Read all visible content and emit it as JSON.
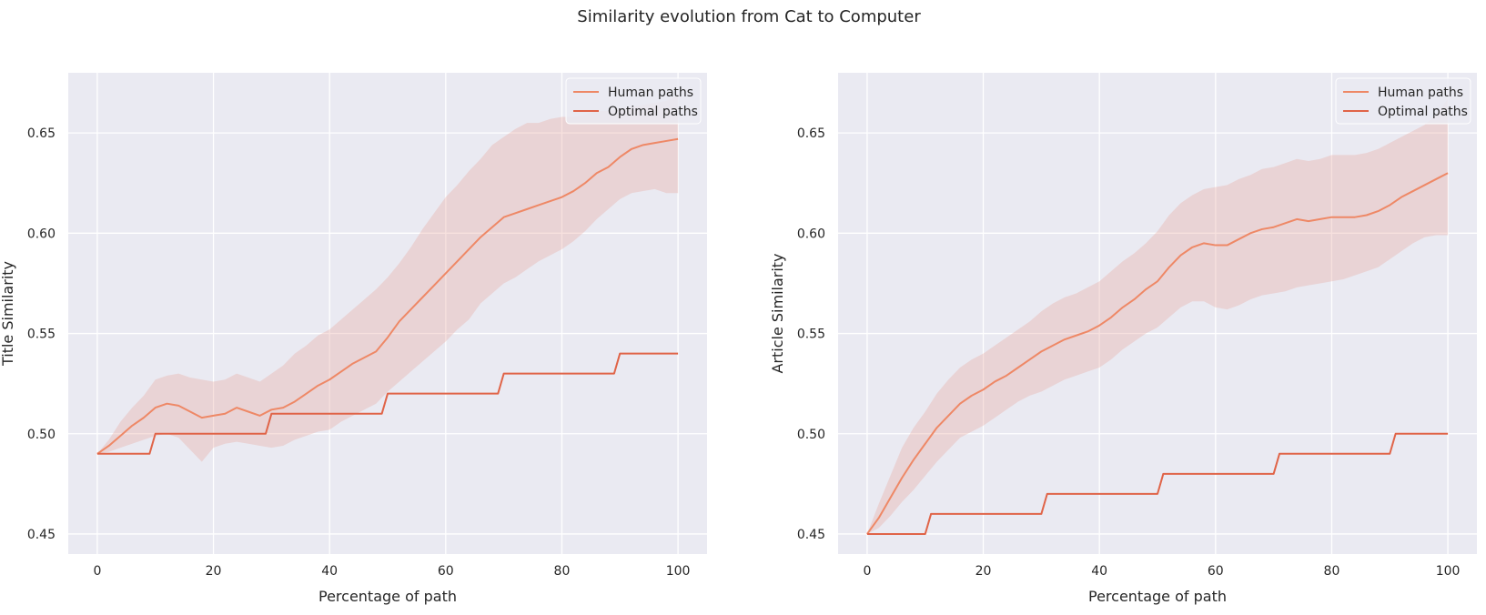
{
  "figure": {
    "title": "Similarity evolution from Cat to Computer"
  },
  "colors": {
    "background": "#eaeaf2",
    "grid": "#ffffff",
    "human": "#ee8866",
    "optimal": "#e06448",
    "band": "#e8a9a0"
  },
  "chart_data": [
    {
      "type": "line",
      "title": "",
      "xlabel": "Percentage of path",
      "ylabel": "Title Similarity",
      "xlim": [
        -5,
        105
      ],
      "ylim": [
        0.44,
        0.68
      ],
      "xticks": [
        0,
        20,
        40,
        60,
        80,
        100
      ],
      "xtick_labels": [
        "0",
        "20",
        "40",
        "60",
        "80",
        "100"
      ],
      "yticks": [
        0.45,
        0.5,
        0.55,
        0.6,
        0.65
      ],
      "ytick_labels": [
        "0.45",
        "0.50",
        "0.55",
        "0.60",
        "0.65"
      ],
      "grid": true,
      "legend_position": "upper-right",
      "series": [
        {
          "name": "Human paths",
          "color_key": "human",
          "x": [
            0,
            2,
            4,
            6,
            8,
            10,
            12,
            14,
            16,
            18,
            20,
            22,
            24,
            26,
            28,
            30,
            32,
            34,
            36,
            38,
            40,
            42,
            44,
            46,
            48,
            50,
            52,
            54,
            56,
            58,
            60,
            62,
            64,
            66,
            68,
            70,
            72,
            74,
            76,
            78,
            80,
            82,
            84,
            86,
            88,
            90,
            92,
            94,
            96,
            98,
            100
          ],
          "y": [
            0.49,
            0.494,
            0.499,
            0.504,
            0.508,
            0.513,
            0.515,
            0.514,
            0.511,
            0.508,
            0.509,
            0.51,
            0.513,
            0.511,
            0.509,
            0.512,
            0.513,
            0.516,
            0.52,
            0.524,
            0.527,
            0.531,
            0.535,
            0.538,
            0.541,
            0.548,
            0.556,
            0.562,
            0.568,
            0.574,
            0.58,
            0.586,
            0.592,
            0.598,
            0.603,
            0.608,
            0.61,
            0.612,
            0.614,
            0.616,
            0.618,
            0.621,
            0.625,
            0.63,
            0.633,
            0.638,
            0.642,
            0.644,
            0.645,
            0.646,
            0.647
          ],
          "ci_lower": [
            0.49,
            0.491,
            0.493,
            0.495,
            0.497,
            0.499,
            0.5,
            0.498,
            0.492,
            0.486,
            0.493,
            0.495,
            0.496,
            0.495,
            0.494,
            0.493,
            0.494,
            0.497,
            0.499,
            0.501,
            0.502,
            0.506,
            0.509,
            0.512,
            0.515,
            0.521,
            0.526,
            0.531,
            0.536,
            0.541,
            0.546,
            0.552,
            0.557,
            0.565,
            0.57,
            0.575,
            0.578,
            0.582,
            0.586,
            0.589,
            0.592,
            0.596,
            0.601,
            0.607,
            0.612,
            0.617,
            0.62,
            0.621,
            0.622,
            0.62,
            0.62
          ],
          "ci_upper": [
            0.49,
            0.497,
            0.506,
            0.513,
            0.519,
            0.527,
            0.529,
            0.53,
            0.528,
            0.527,
            0.526,
            0.527,
            0.53,
            0.528,
            0.526,
            0.53,
            0.534,
            0.54,
            0.544,
            0.549,
            0.552,
            0.557,
            0.562,
            0.567,
            0.572,
            0.578,
            0.585,
            0.593,
            0.602,
            0.61,
            0.618,
            0.624,
            0.631,
            0.637,
            0.644,
            0.648,
            0.652,
            0.655,
            0.655,
            0.657,
            0.658,
            0.658,
            0.659,
            0.661,
            0.661,
            0.662,
            0.663,
            0.664,
            0.665,
            0.666,
            0.669
          ]
        },
        {
          "name": "Optimal paths",
          "color_key": "optimal",
          "x": [
            0,
            9,
            10,
            29,
            30,
            49,
            50,
            69,
            70,
            89,
            90,
            100
          ],
          "y": [
            0.49,
            0.49,
            0.5,
            0.5,
            0.51,
            0.51,
            0.52,
            0.52,
            0.53,
            0.53,
            0.54,
            0.54
          ]
        }
      ]
    },
    {
      "type": "line",
      "title": "",
      "xlabel": "Percentage of path",
      "ylabel": "Article Similarity",
      "xlim": [
        -5,
        105
      ],
      "ylim": [
        0.44,
        0.68
      ],
      "xticks": [
        0,
        20,
        40,
        60,
        80,
        100
      ],
      "xtick_labels": [
        "0",
        "20",
        "40",
        "60",
        "80",
        "100"
      ],
      "yticks": [
        0.45,
        0.5,
        0.55,
        0.6,
        0.65
      ],
      "ytick_labels": [
        "0.45",
        "0.50",
        "0.55",
        "0.60",
        "0.65"
      ],
      "grid": true,
      "legend_position": "upper-right",
      "series": [
        {
          "name": "Human paths",
          "color_key": "human",
          "x": [
            0,
            2,
            4,
            6,
            8,
            10,
            12,
            14,
            16,
            18,
            20,
            22,
            24,
            26,
            28,
            30,
            32,
            34,
            36,
            38,
            40,
            42,
            44,
            46,
            48,
            50,
            52,
            54,
            56,
            58,
            60,
            62,
            64,
            66,
            68,
            70,
            72,
            74,
            76,
            78,
            80,
            82,
            84,
            86,
            88,
            90,
            92,
            94,
            96,
            98,
            100
          ],
          "y": [
            0.45,
            0.458,
            0.468,
            0.478,
            0.487,
            0.495,
            0.503,
            0.509,
            0.515,
            0.519,
            0.522,
            0.526,
            0.529,
            0.533,
            0.537,
            0.541,
            0.544,
            0.547,
            0.549,
            0.551,
            0.554,
            0.558,
            0.563,
            0.567,
            0.572,
            0.576,
            0.583,
            0.589,
            0.593,
            0.595,
            0.594,
            0.594,
            0.597,
            0.6,
            0.602,
            0.603,
            0.605,
            0.607,
            0.606,
            0.607,
            0.608,
            0.608,
            0.608,
            0.609,
            0.611,
            0.614,
            0.618,
            0.621,
            0.624,
            0.627,
            0.63
          ],
          "ci_lower": [
            0.45,
            0.453,
            0.459,
            0.466,
            0.472,
            0.479,
            0.486,
            0.492,
            0.498,
            0.501,
            0.504,
            0.508,
            0.512,
            0.516,
            0.519,
            0.521,
            0.524,
            0.527,
            0.529,
            0.531,
            0.533,
            0.537,
            0.542,
            0.546,
            0.55,
            0.553,
            0.558,
            0.563,
            0.566,
            0.566,
            0.563,
            0.562,
            0.564,
            0.567,
            0.569,
            0.57,
            0.571,
            0.573,
            0.574,
            0.575,
            0.576,
            0.577,
            0.579,
            0.581,
            0.583,
            0.587,
            0.591,
            0.595,
            0.598,
            0.599,
            0.599
          ],
          "ci_upper": [
            0.45,
            0.465,
            0.479,
            0.493,
            0.503,
            0.511,
            0.52,
            0.527,
            0.533,
            0.537,
            0.54,
            0.544,
            0.548,
            0.552,
            0.556,
            0.561,
            0.565,
            0.568,
            0.57,
            0.573,
            0.576,
            0.581,
            0.586,
            0.59,
            0.595,
            0.601,
            0.609,
            0.615,
            0.619,
            0.622,
            0.623,
            0.624,
            0.627,
            0.629,
            0.632,
            0.633,
            0.635,
            0.637,
            0.636,
            0.637,
            0.639,
            0.639,
            0.639,
            0.64,
            0.642,
            0.645,
            0.648,
            0.651,
            0.654,
            0.659,
            0.667
          ]
        },
        {
          "name": "Optimal paths",
          "color_key": "optimal",
          "x": [
            0,
            10,
            11,
            30,
            31,
            50,
            51,
            70,
            71,
            90,
            91,
            100
          ],
          "y": [
            0.45,
            0.45,
            0.46,
            0.46,
            0.47,
            0.47,
            0.48,
            0.48,
            0.49,
            0.49,
            0.5,
            0.5
          ]
        }
      ]
    }
  ]
}
